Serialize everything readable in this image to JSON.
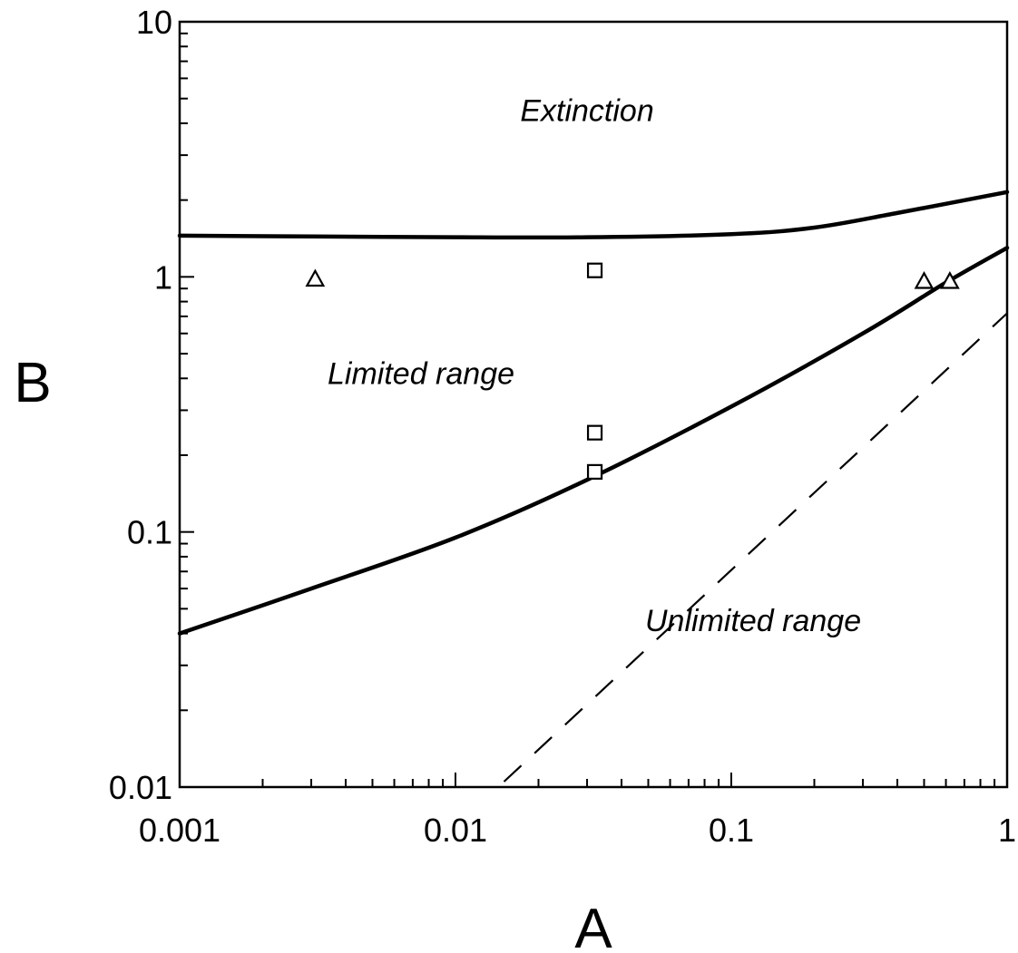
{
  "chart_data": {
    "type": "line",
    "xlabel": "A",
    "ylabel": "B",
    "xscale": "log",
    "yscale": "log",
    "xlim": [
      0.001,
      1
    ],
    "ylim": [
      0.01,
      10
    ],
    "xtick_values": [
      0.001,
      0.01,
      0.1,
      1
    ],
    "xtick_labels": [
      "0.001",
      "0.01",
      "0.1",
      "1"
    ],
    "ytick_values": [
      0.01,
      0.1,
      1,
      10
    ],
    "ytick_labels": [
      "0.01",
      "0.1",
      "1",
      "10"
    ],
    "annotations": [
      {
        "text": "Extinction",
        "x": 0.03,
        "y": 4.5
      },
      {
        "text": "Limited range",
        "x": 0.0075,
        "y": 0.42
      },
      {
        "text": "Unlimited range",
        "x": 0.12,
        "y": 0.045
      }
    ],
    "series": [
      {
        "style": "solid",
        "x": [
          0.001,
          0.003,
          0.01,
          0.03,
          0.1,
          0.2,
          0.4,
          1
        ],
        "y": [
          1.45,
          1.44,
          1.43,
          1.43,
          1.47,
          1.56,
          1.78,
          2.15
        ]
      },
      {
        "style": "solid",
        "x": [
          0.001,
          0.003,
          0.01,
          0.03,
          0.1,
          0.3,
          0.6,
          1
        ],
        "y": [
          0.04,
          0.06,
          0.095,
          0.16,
          0.31,
          0.6,
          0.95,
          1.3
        ]
      },
      {
        "style": "dashed",
        "x": [
          0.015,
          1
        ],
        "y": [
          0.0105,
          0.72
        ]
      }
    ],
    "points": [
      {
        "marker": "triangle",
        "x": 0.0031,
        "y": 0.98
      },
      {
        "marker": "triangle",
        "x": 0.5,
        "y": 0.96
      },
      {
        "marker": "triangle",
        "x": 0.62,
        "y": 0.96
      },
      {
        "marker": "square",
        "x": 0.032,
        "y": 1.06
      },
      {
        "marker": "square",
        "x": 0.032,
        "y": 0.245
      },
      {
        "marker": "square",
        "x": 0.032,
        "y": 0.172
      }
    ]
  }
}
